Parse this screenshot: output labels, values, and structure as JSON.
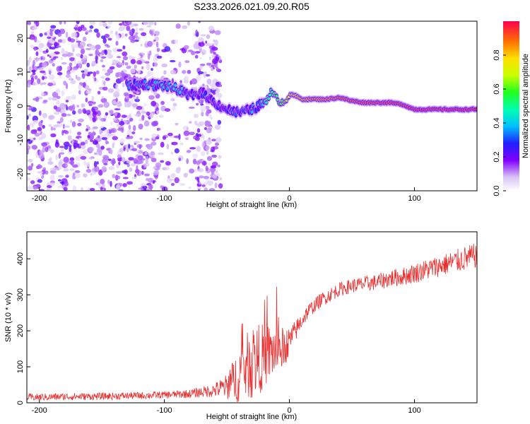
{
  "figure_title": "S233.2026.021.09.20.R05",
  "chart_data": [
    {
      "type": "heatmap",
      "title": "S233.2026.021.09.20.R05",
      "xlabel": "Height of straight line (km)",
      "ylabel": "Frequency (Hz)",
      "xlim": [
        -210,
        150
      ],
      "ylim": [
        -25,
        25
      ],
      "xticks": [
        -200,
        -100,
        0,
        100
      ],
      "yticks": [
        -20,
        -10,
        0,
        10,
        20
      ],
      "colorbar": {
        "label": "Normalized spectral amplitude",
        "range": [
          0,
          1
        ],
        "ticks": [
          "0.0",
          "0.2",
          "0.4",
          "0.6",
          "0.8"
        ],
        "tick_values": [
          0.0,
          0.2,
          0.4,
          0.6,
          0.8
        ]
      },
      "ridge": {
        "description_of_data": "dominant frequency vs height",
        "x": [
          -130,
          -115,
          -100,
          -90,
          -80,
          -70,
          -60,
          -50,
          -40,
          -30,
          -20,
          -15,
          -10,
          -5,
          0,
          5,
          10,
          20,
          30,
          40,
          50,
          60,
          70,
          80,
          90,
          100,
          110,
          120,
          130,
          140,
          150
        ],
        "freq": [
          6,
          6.5,
          6,
          5,
          3,
          4,
          1,
          -1,
          -2,
          -1,
          1,
          4,
          2,
          1,
          3.5,
          3,
          2,
          2,
          2,
          2.5,
          1.5,
          1,
          1,
          1,
          0.5,
          -1,
          -1,
          -1,
          -1,
          -1,
          -1
        ],
        "amplitude": [
          0.3,
          0.35,
          0.35,
          0.4,
          0.3,
          0.3,
          0.25,
          0.25,
          0.3,
          0.35,
          0.5,
          0.5,
          0.55,
          0.6,
          0.7,
          0.75,
          0.8,
          0.85,
          0.85,
          0.88,
          0.9,
          0.92,
          0.92,
          0.93,
          0.93,
          0.95,
          0.95,
          0.95,
          0.96,
          0.96,
          0.96
        ]
      }
    },
    {
      "type": "line",
      "xlabel": "Height of straight line (km)",
      "ylabel": "SNR (10 * v/v)",
      "xlim": [
        -210,
        150
      ],
      "ylim": [
        0,
        475
      ],
      "xticks": [
        -200,
        -100,
        0,
        100
      ],
      "yticks": [
        0,
        100,
        200,
        300,
        400
      ],
      "color": "#e83030",
      "series": [
        {
          "name": "SNR",
          "x": [
            -210,
            -180,
            -150,
            -120,
            -100,
            -80,
            -70,
            -60,
            -50,
            -45,
            -40,
            -35,
            -30,
            -25,
            -20,
            -15,
            -10,
            -5,
            0,
            5,
            10,
            15,
            20,
            25,
            30,
            40,
            50,
            60,
            70,
            80,
            90,
            100,
            110,
            120,
            130,
            140,
            150
          ],
          "y": [
            15,
            17,
            18,
            20,
            22,
            25,
            30,
            35,
            45,
            60,
            80,
            100,
            110,
            120,
            130,
            140,
            145,
            150,
            170,
            200,
            230,
            255,
            270,
            285,
            295,
            315,
            325,
            330,
            335,
            345,
            350,
            360,
            370,
            380,
            390,
            400,
            410
          ],
          "noise_amplitude": [
            10,
            10,
            10,
            10,
            10,
            12,
            15,
            20,
            35,
            60,
            80,
            90,
            100,
            100,
            90,
            80,
            70,
            60,
            40,
            30,
            25,
            20,
            20,
            20,
            20,
            20,
            20,
            22,
            22,
            25,
            25,
            28,
            30,
            30,
            32,
            35,
            35
          ]
        }
      ]
    }
  ]
}
